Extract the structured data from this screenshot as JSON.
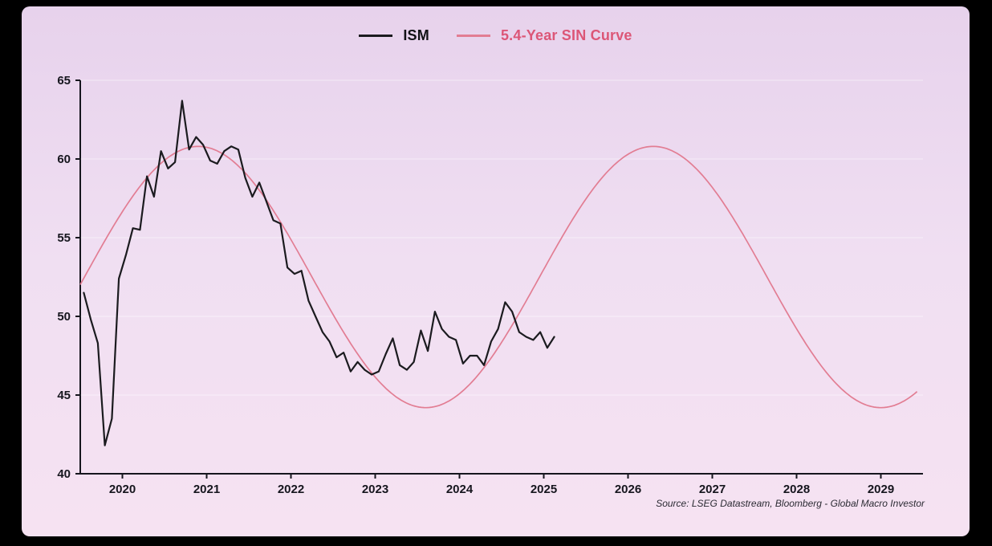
{
  "legend": {
    "ism_label": "ISM",
    "sin_label": "5.4-Year SIN Curve"
  },
  "source": "Source: LSEG Datastream, Bloomberg - Global Macro Investor",
  "colors": {
    "background_frame": "#000000",
    "panel_gradient_top": "#e7d2ec",
    "panel_gradient_mid": "#f0dff2",
    "panel_gradient_bottom": "#f6e2f2",
    "ism_line": "#1b1b1f",
    "sin_line": "#e27d93",
    "sin_label_text": "#dc5677",
    "ism_label_text": "#111115",
    "axis": "#16161e",
    "gridline": "rgba(255,255,255,0.5)",
    "source_text": "#2b2b33"
  },
  "chart_data": {
    "type": "line",
    "title": "",
    "legend_position": "top-center",
    "grid": "faint-horizontal",
    "x_axis": {
      "min": 2020.0,
      "max": 2030.0,
      "tick_years": [
        2020,
        2021,
        2022,
        2023,
        2024,
        2025,
        2026,
        2027,
        2028,
        2029
      ],
      "tick_label_position": "year_center"
    },
    "y_axis": {
      "min": 40,
      "max": 65,
      "ticks": [
        40,
        45,
        50,
        55,
        60,
        65
      ]
    },
    "series": [
      {
        "name": "ISM",
        "type": "monthly",
        "color_key": "ism_line",
        "start_year": 2020,
        "start_month": 1,
        "values": [
          51.5,
          49.8,
          48.3,
          41.8,
          43.5,
          52.4,
          53.9,
          55.6,
          55.5,
          58.9,
          57.6,
          60.5,
          59.4,
          59.8,
          63.7,
          60.6,
          61.4,
          60.9,
          59.9,
          59.7,
          60.5,
          60.8,
          60.6,
          58.8,
          57.6,
          58.5,
          57.3,
          56.1,
          55.9,
          53.1,
          52.7,
          52.9,
          51.0,
          50.0,
          49.0,
          48.4,
          47.4,
          47.7,
          46.5,
          47.1,
          46.6,
          46.3,
          46.5,
          47.6,
          48.6,
          46.9,
          46.6,
          47.1,
          49.1,
          47.8,
          50.3,
          49.2,
          48.7,
          48.5,
          47.0,
          47.5,
          47.5,
          46.9,
          48.4,
          49.2,
          50.9,
          50.3,
          49.0,
          48.7,
          48.5,
          49.0,
          48.0,
          48.7
        ]
      },
      {
        "name": "5.4-Year SIN Curve",
        "type": "sine",
        "color_key": "sin_line",
        "midline": 52.5,
        "amplitude": 8.3,
        "period_years": 5.4,
        "peak_year": 2021.4,
        "x_start": 2020.0,
        "x_end": 2029.95
      }
    ]
  }
}
